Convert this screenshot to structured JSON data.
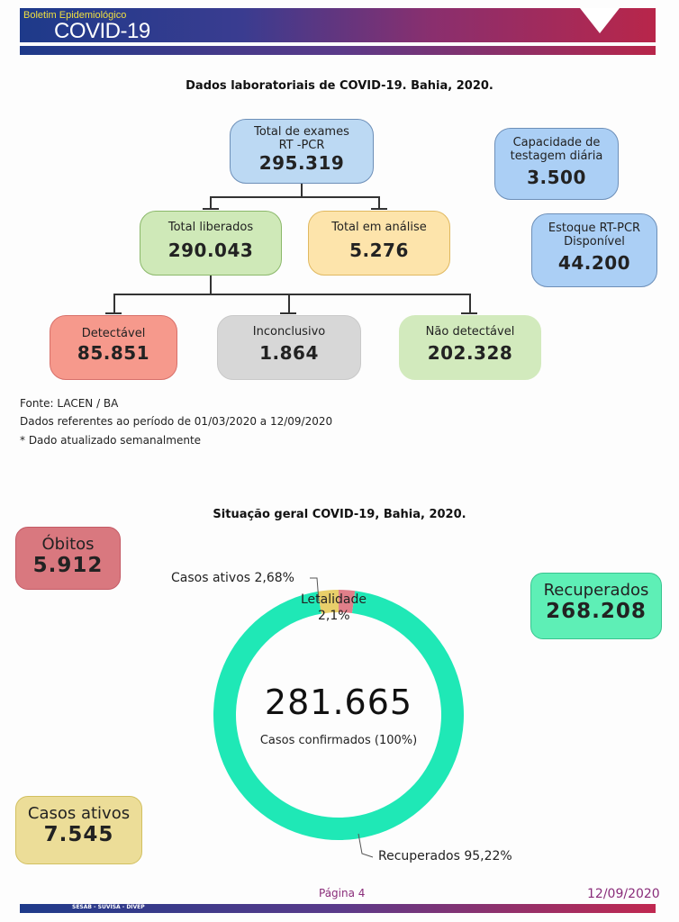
{
  "header": {
    "kicker": "Boletim Epidemiológico",
    "title": "COVID-19"
  },
  "lab": {
    "title": "Dados laboratoriais de COVID-19. Bahia, 2020.",
    "total": {
      "label1": "Total de exames",
      "label2": "RT -PCR",
      "value": "295.319"
    },
    "liberados": {
      "label": "Total liberados",
      "value": "290.043"
    },
    "analise": {
      "label": "Total em análise",
      "value": "5.276"
    },
    "detectavel": {
      "label": "Detectável",
      "value": "85.851"
    },
    "inconclusivo": {
      "label": "Inconclusivo",
      "value": "1.864"
    },
    "nao_detectavel": {
      "label": "Não detectável",
      "value": "202.328"
    },
    "capacidade": {
      "label1": "Capacidade de",
      "label2": "testagem diária",
      "value": "3.500"
    },
    "estoque": {
      "label1": "Estoque RT-PCR",
      "label2": "Disponível",
      "value": "44.200"
    },
    "notes": [
      "Fonte: LACEN / BA",
      "Dados referentes ao período de  01/03/2020 a 12/09/2020",
      "* Dado atualizado semanalmente"
    ]
  },
  "geral": {
    "title": "Situação geral COVID-19, Bahia, 2020.",
    "obitos": {
      "label": "Óbitos",
      "value": "5.912"
    },
    "recuperados": {
      "label": "Recuperados",
      "value": "268.208"
    },
    "ativos": {
      "label": "Casos ativos",
      "value": "7.545"
    },
    "center_value": "281.665",
    "center_label": "Casos confirmados (100%)",
    "slices": [
      {
        "name": "Letalidade",
        "label1": "Letalidade",
        "label2": "2,1%",
        "percent": 2.1,
        "color": "#e07f8a"
      },
      {
        "name": "Recuperados",
        "label": "Recuperados 95,22%",
        "percent": 95.22,
        "color": "#1fe8b6"
      },
      {
        "name": "Casos ativos",
        "label": "Casos ativos 2,68%",
        "percent": 2.68,
        "color": "#e8cf6a"
      }
    ]
  },
  "footer": {
    "page": "Página 4",
    "date": "12/09/2020",
    "org": "SESAB - SUVISA - DIVEP"
  }
}
